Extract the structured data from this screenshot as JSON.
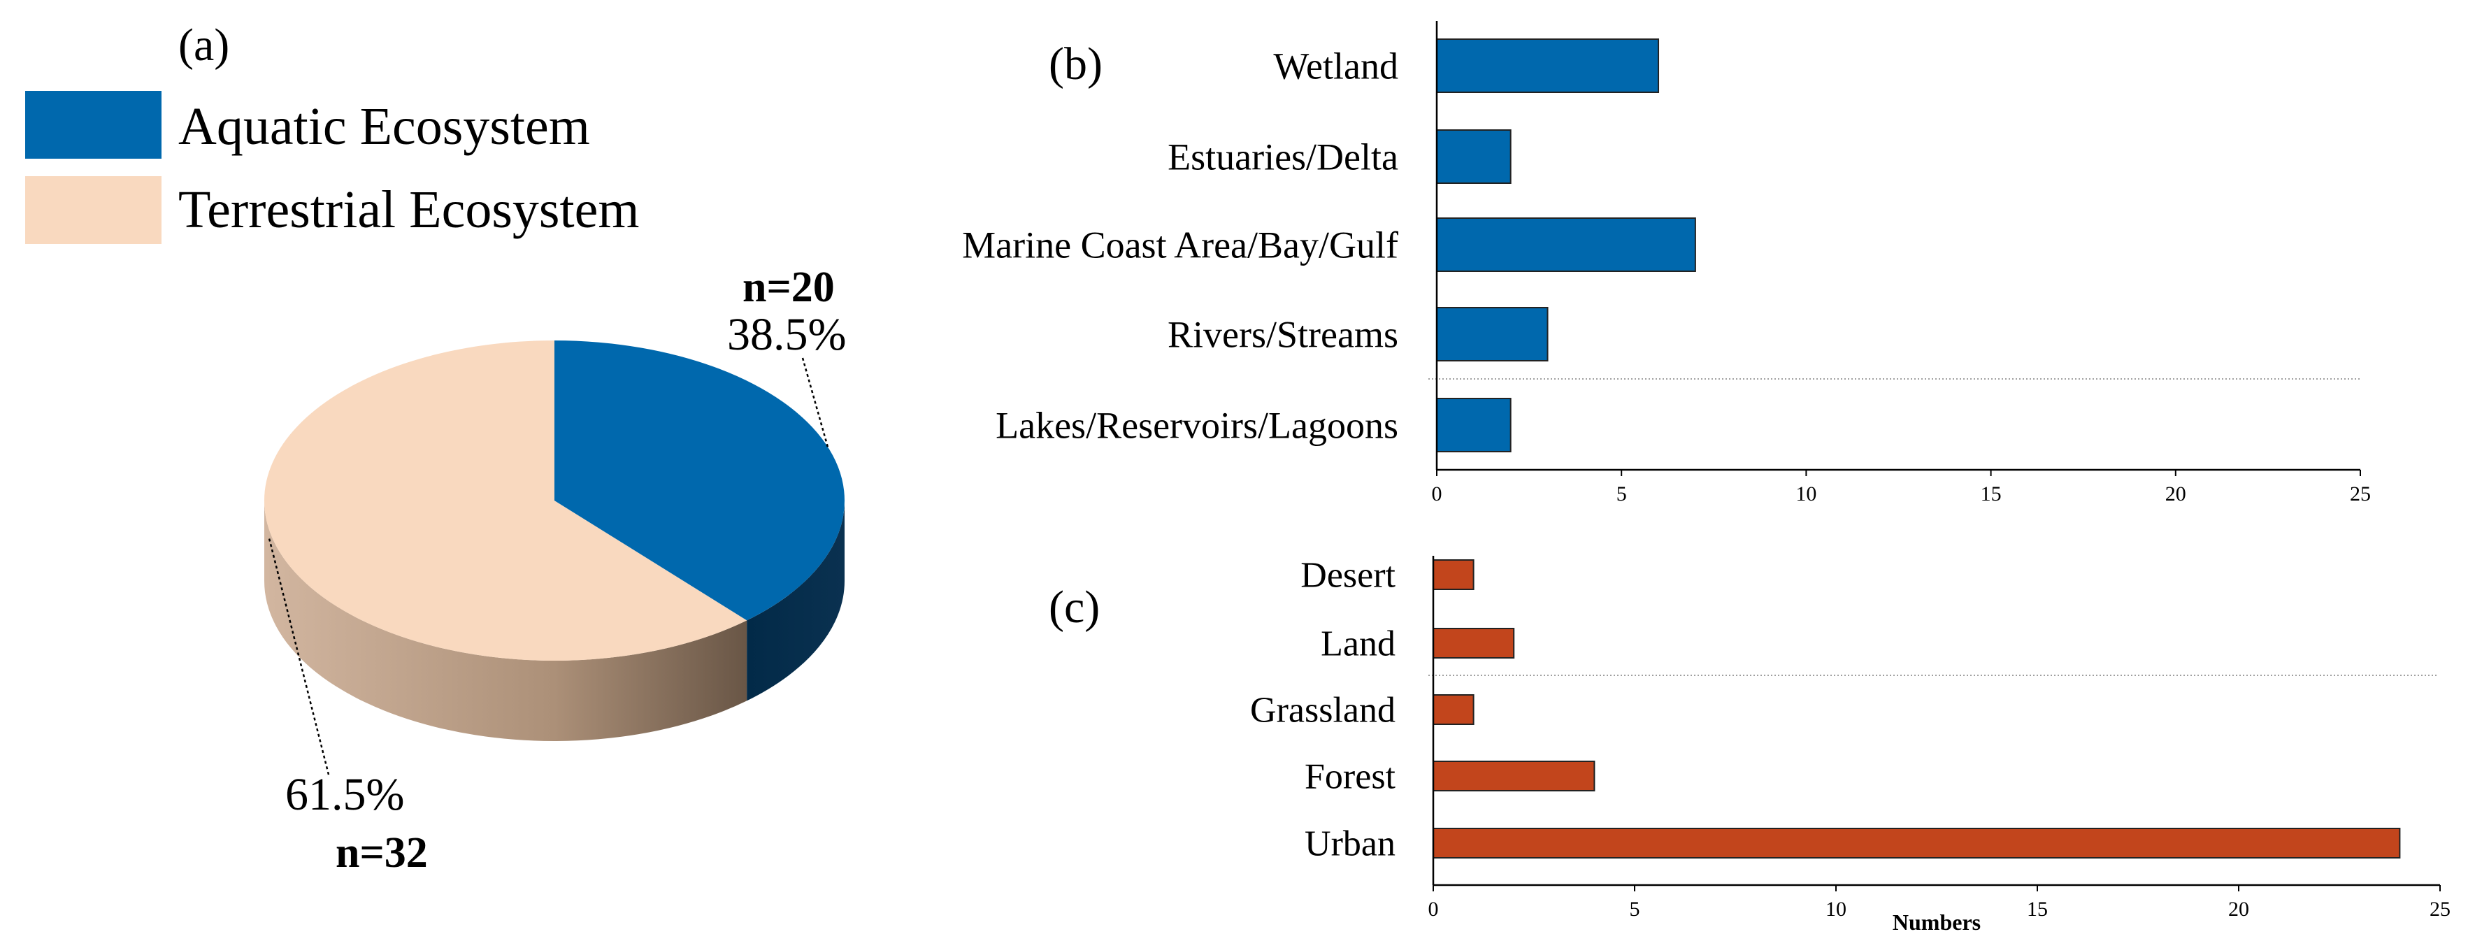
{
  "chart_data": [
    {
      "type": "pie",
      "panel_label": "(a)",
      "legend": [
        {
          "name": "Aquatic Ecosystem",
          "color": "#0068AD"
        },
        {
          "name": "Terrestrial Ecosystem",
          "color": "#F9D9BF"
        }
      ],
      "slices": [
        {
          "name": "Aquatic Ecosystem",
          "value": 20,
          "percent": 38.5,
          "percent_label": "38.5%",
          "n_label": "n=20",
          "color": "#0068AD",
          "side_color": "#032A47"
        },
        {
          "name": "Terrestrial Ecosystem",
          "value": 32,
          "percent": 61.5,
          "percent_label": "61.5%",
          "n_label": "n=32",
          "color": "#F9D9BF",
          "side_color": "#B79E88"
        }
      ]
    },
    {
      "type": "bar",
      "orientation": "horizontal",
      "panel_label": "(b)",
      "categories": [
        "Wetland",
        "Estuaries/Delta",
        "Marine Coast Area/Bay/Gulf",
        "Rivers/Streams",
        "Lakes/Reservoirs/Lagoons"
      ],
      "values": [
        6,
        2,
        7,
        3,
        2
      ],
      "bar_color": "#0068AD",
      "xlim": [
        0,
        25
      ],
      "xticks": [
        0,
        5,
        10,
        15,
        20,
        25
      ],
      "xlabel": ""
    },
    {
      "type": "bar",
      "orientation": "horizontal",
      "panel_label": "(c)",
      "categories": [
        "Desert",
        "Land",
        "Grassland",
        "Forest",
        "Urban"
      ],
      "values": [
        1,
        2,
        1,
        4,
        24
      ],
      "bar_color": "#C2451C",
      "xlim": [
        0,
        25
      ],
      "xticks": [
        0,
        5,
        10,
        15,
        20,
        25
      ],
      "xlabel": "Numbers"
    }
  ]
}
